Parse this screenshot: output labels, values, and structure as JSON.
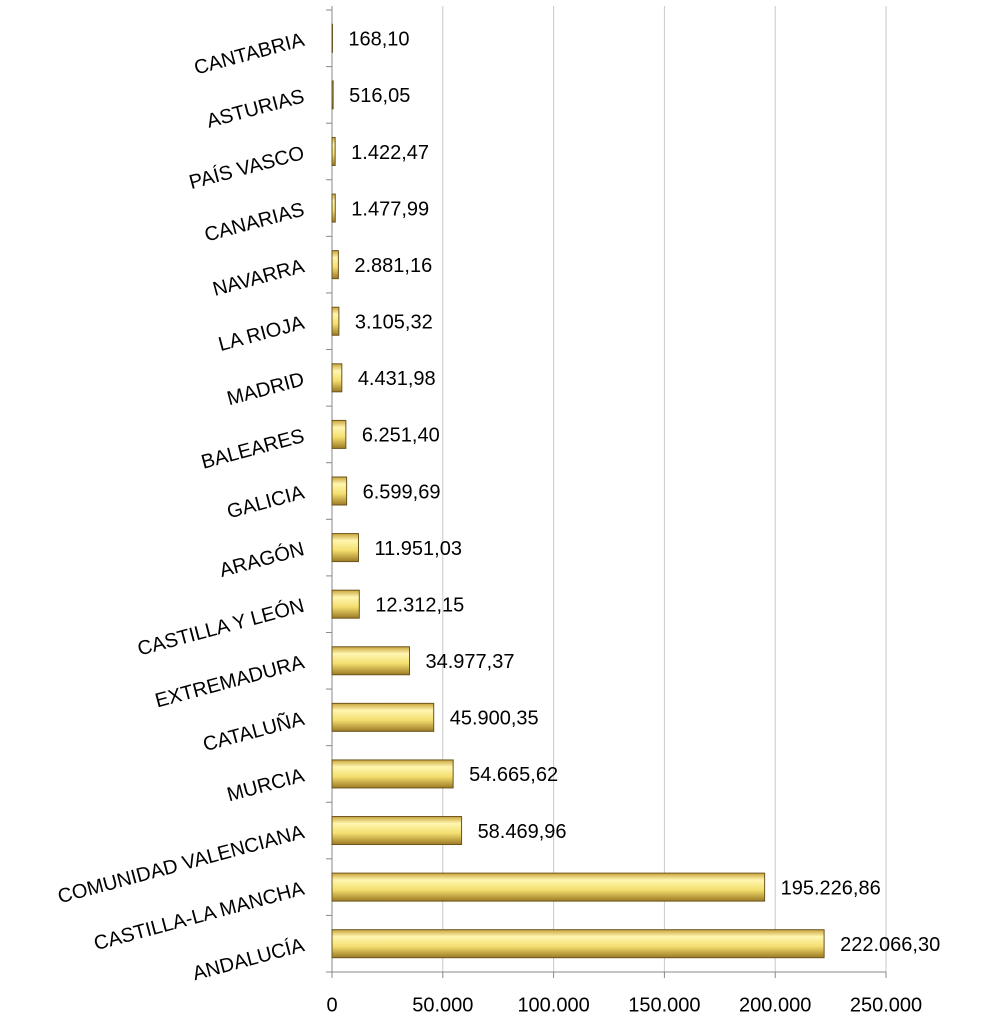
{
  "chart_data": {
    "type": "barh",
    "categories": [
      "CANTABRIA",
      "ASTURIAS",
      "PAÍS VASCO",
      "CANARIAS",
      "NAVARRA",
      "LA RIOJA",
      "MADRID",
      "BALEARES",
      "GALICIA",
      "ARAGÓN",
      "CASTILLA Y LEÓN",
      "EXTREMADURA",
      "CATALUÑA",
      "MURCIA",
      "COMUNIDAD VALENCIANA",
      "CASTILLA-LA MANCHA",
      "ANDALUCÍA"
    ],
    "values": [
      168.1,
      516.05,
      1422.47,
      1477.99,
      2881.16,
      3105.32,
      4431.98,
      6251.4,
      6599.69,
      11951.03,
      12312.15,
      34977.37,
      45900.35,
      54665.62,
      58469.96,
      195226.86,
      222066.3
    ],
    "value_labels": [
      "168,10",
      "516,05",
      "1.422,47",
      "1.477,99",
      "2.881,16",
      "3.105,32",
      "4.431,98",
      "6.251,40",
      "6.599,69",
      "11.951,03",
      "12.312,15",
      "34.977,37",
      "45.900,35",
      "54.665,62",
      "58.469,96",
      "195.226,86",
      "222.066,30"
    ],
    "color": "#f3de6e",
    "xlim": [
      0,
      250000
    ],
    "xticks": [
      0,
      {
        "value": 50000,
        "label": "50.000"
      },
      {
        "value": 100000,
        "label": "100.000"
      },
      {
        "value": 150000,
        "label": "150.000"
      },
      {
        "value": 200000,
        "label": "200.000"
      },
      {
        "value": 250000,
        "label": "250.000"
      }
    ],
    "grid": true
  }
}
